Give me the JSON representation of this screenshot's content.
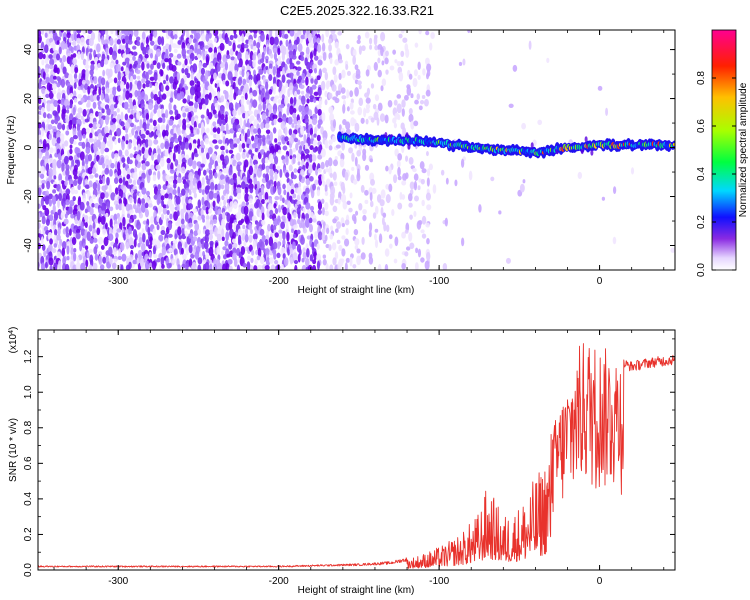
{
  "title": "C2E5.2025.322.16.33.R21",
  "chart_data": [
    {
      "type": "heatmap",
      "name": "spectrogram",
      "xlabel": "Height of straight line (km)",
      "ylabel": "Frequency (Hz)",
      "xlim": [
        -350,
        47
      ],
      "ylim": [
        -50,
        48
      ],
      "xticks": [
        -300,
        -200,
        -100,
        0
      ],
      "yticks": [
        -40,
        -20,
        0,
        20,
        40
      ],
      "ridge": [
        {
          "x": -160,
          "y": 4
        },
        {
          "x": -140,
          "y": 3
        },
        {
          "x": -120,
          "y": 3
        },
        {
          "x": -100,
          "y": 2
        },
        {
          "x": -80,
          "y": 0
        },
        {
          "x": -60,
          "y": -1
        },
        {
          "x": -40,
          "y": -2
        },
        {
          "x": -20,
          "y": 0
        },
        {
          "x": 0,
          "y": 1
        },
        {
          "x": 20,
          "y": 1
        },
        {
          "x": 47,
          "y": 1
        }
      ],
      "colorbar": {
        "label": "Normalized spectral amplitude",
        "range": [
          0,
          1
        ],
        "ticks": [
          "0.0",
          "0.2",
          "0.4",
          "0.6",
          "0.8"
        ],
        "tick_values": [
          0,
          0.2,
          0.4,
          0.6,
          0.8
        ]
      }
    },
    {
      "type": "line",
      "name": "snr",
      "xlabel": "Height of straight line (km)",
      "ylabel": "SNR (10 * v/v)",
      "scale_note": "(x10",
      "scale_exponent": "4",
      "scale_close": ")",
      "xlim": [
        -350,
        47
      ],
      "ylim": [
        0,
        1.35
      ],
      "xticks": [
        -300,
        -200,
        -100,
        0
      ],
      "yticks": [
        "0.0",
        "0.2",
        "0.4",
        "0.6",
        "0.8",
        "1.0",
        "1.2"
      ],
      "ytick_values": [
        0,
        0.2,
        0.4,
        0.6,
        0.8,
        1.0,
        1.2
      ],
      "color": "#e8322c",
      "envelope": [
        {
          "x": -350,
          "y": 0.02
        },
        {
          "x": -200,
          "y": 0.02
        },
        {
          "x": -150,
          "y": 0.03
        },
        {
          "x": -130,
          "y": 0.04
        },
        {
          "x": -115,
          "y": 0.07
        },
        {
          "x": -105,
          "y": 0.1
        },
        {
          "x": -95,
          "y": 0.14
        },
        {
          "x": -85,
          "y": 0.2
        },
        {
          "x": -75,
          "y": 0.3
        },
        {
          "x": -70,
          "y": 0.44
        },
        {
          "x": -60,
          "y": 0.28
        },
        {
          "x": -50,
          "y": 0.33
        },
        {
          "x": -42,
          "y": 0.45
        },
        {
          "x": -35,
          "y": 0.55
        },
        {
          "x": -30,
          "y": 0.75
        },
        {
          "x": -25,
          "y": 0.88
        },
        {
          "x": -18,
          "y": 1.05
        },
        {
          "x": -12,
          "y": 1.22
        },
        {
          "x": -8,
          "y": 1.25
        },
        {
          "x": 0,
          "y": 1.2
        },
        {
          "x": 10,
          "y": 1.18
        },
        {
          "x": 20,
          "y": 1.15
        },
        {
          "x": 30,
          "y": 1.17
        },
        {
          "x": 47,
          "y": 1.19
        }
      ]
    }
  ]
}
